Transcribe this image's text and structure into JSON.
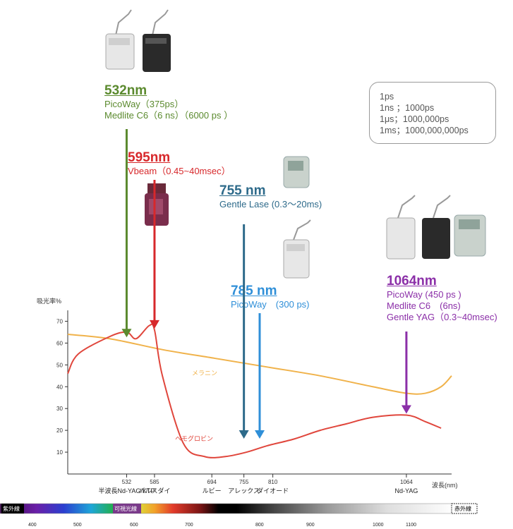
{
  "wavelength_callouts": [
    {
      "label": "532nm",
      "color": "#5b8a2e",
      "lines": [
        "PicoWay（375ps）",
        "Medlite C6（6 ns）（6000 ps ）"
      ]
    },
    {
      "label": "595nm",
      "color": "#d7282b",
      "lines": [
        "Vbeam（0.45~40msec）"
      ]
    },
    {
      "label": "755 nm",
      "color": "#2d6a8a",
      "lines": [
        "Gentle Lase (0.3〜20ms)"
      ]
    },
    {
      "label": "785 nm",
      "color": "#2f8fd8",
      "lines": [
        "PicoWay　(300 ps)"
      ]
    },
    {
      "label": "1064nm",
      "color": "#8b2fa8",
      "lines": [
        "PicoWay (450 ps )",
        "Medlite C6　(6ns)",
        "Gentle YAG（0.3~40msec)"
      ]
    }
  ],
  "unit_legend": [
    "1ps",
    "1ns  ；1000ps",
    "1μs；1000,000ps",
    "1ms；1000,000,000ps"
  ],
  "chart_data": {
    "type": "line",
    "ylabel": "吸光率%",
    "xlabel": "波長(nm)",
    "ylim": [
      0,
      75
    ],
    "yticks": [
      10,
      20,
      30,
      40,
      50,
      60,
      70
    ],
    "xlim": [
      420,
      1150
    ],
    "xticks": [
      {
        "x": 532,
        "label": "532",
        "name": "半波長Nd-YAG/KTP"
      },
      {
        "x": 585,
        "label": "585",
        "name": "パルスダイ"
      },
      {
        "x": 694,
        "label": "694",
        "name": "ルビー"
      },
      {
        "x": 755,
        "label": "755",
        "name": "アレックス"
      },
      {
        "x": 810,
        "label": "810",
        "name": "ダイオード"
      },
      {
        "x": 1064,
        "label": "1064",
        "name": "Nd-YAG"
      }
    ],
    "series": [
      {
        "name": "メラニン",
        "color": "#f0b24a",
        "x": [
          420,
          500,
          600,
          700,
          800,
          900,
          1000,
          1064,
          1100,
          1130,
          1150
        ],
        "y": [
          64,
          62,
          57,
          53,
          49,
          45,
          40,
          37,
          37,
          40,
          45
        ]
      },
      {
        "name": "ヘモグロビン",
        "color": "#e0463c",
        "x": [
          420,
          440,
          500,
          532,
          550,
          575,
          585,
          600,
          640,
          680,
          720,
          760,
          800,
          850,
          900,
          950,
          1000,
          1064,
          1100,
          1130
        ],
        "y": [
          46,
          55,
          63,
          65,
          62,
          68,
          66,
          45,
          14,
          8,
          8,
          10,
          13,
          16,
          20,
          23,
          26,
          27,
          24,
          21
        ]
      }
    ],
    "laser_arrows": [
      {
        "x": 532,
        "color": "#5b8a2e"
      },
      {
        "x": 585,
        "color": "#d7282b"
      },
      {
        "x": 755,
        "color": "#2d6a8a"
      },
      {
        "x": 785,
        "color": "#2f8fd8"
      },
      {
        "x": 1064,
        "color": "#8b2fa8"
      }
    ]
  },
  "spectrum": {
    "left_label": "紫外線",
    "middle_label": "可視光線",
    "right_label": "赤外線",
    "ticks": [
      "400",
      "500",
      "600",
      "700",
      "800",
      "900",
      "1000",
      "1100"
    ]
  }
}
